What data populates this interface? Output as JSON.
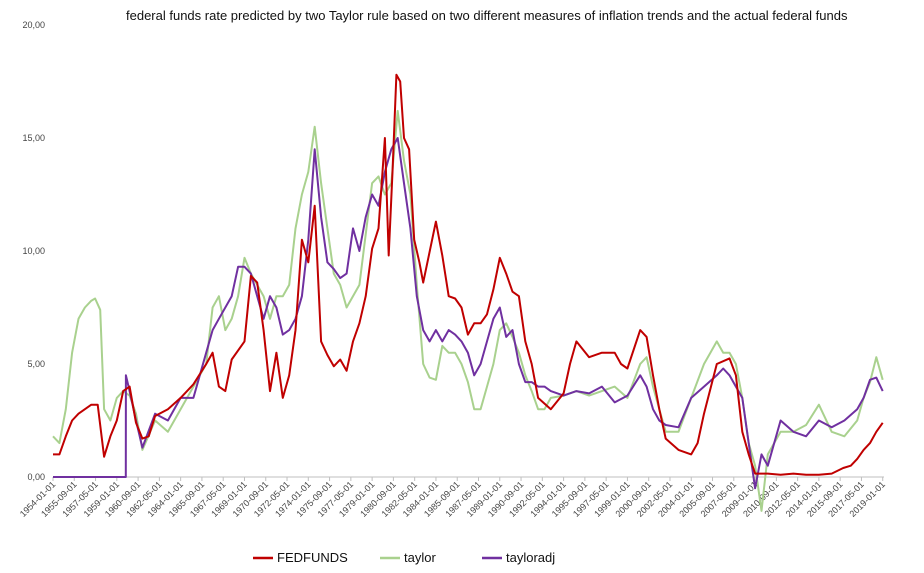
{
  "chart_data": {
    "type": "line",
    "title": "federal funds rate predicted by two Taylor rule  based  on two different measures of inflation trends and the actual federal funds",
    "xlabel": "",
    "ylabel": "",
    "ylim": [
      0,
      20
    ],
    "y_ticks": [
      "0,00",
      "5,00",
      "10,00",
      "15,00",
      "20,00"
    ],
    "x_ticks": [
      "1954-01-01",
      "1955-09-01",
      "1957-05-01",
      "1959-01-01",
      "1960-09-01",
      "1962-05-01",
      "1964-01-01",
      "1965-09-01",
      "1967-05-01",
      "1969-01-01",
      "1970-09-01",
      "1972-05-01",
      "1974-01-01",
      "1975-09-01",
      "1977-05-01",
      "1979-01-01",
      "1980-09-01",
      "1982-05-01",
      "1984-01-01",
      "1985-09-01",
      "1987-05-01",
      "1989-01-01",
      "1990-09-01",
      "1992-05-01",
      "1994-01-01",
      "1995-09-01",
      "1997-05-01",
      "1999-01-01",
      "2000-09-01",
      "2002-05-01",
      "2004-01-01",
      "2005-09-01",
      "2007-05-01",
      "2009-01-01",
      "2010-09-01",
      "2012-05-01",
      "2014-01-01",
      "2015-09-01",
      "2017-05-01",
      "2019-01-01"
    ],
    "x_range": [
      1954.0,
      2019.1
    ],
    "grid": false,
    "legend_position": "bottom",
    "series": [
      {
        "name": "FEDFUNDS",
        "color": "#c00000",
        "x": [
          1954.0,
          1954.5,
          1955.0,
          1955.5,
          1956.0,
          1956.5,
          1957.0,
          1957.5,
          1958.0,
          1958.5,
          1959.0,
          1959.5,
          1960.0,
          1960.5,
          1961.0,
          1961.5,
          1962.0,
          1963.0,
          1964.0,
          1965.0,
          1966.0,
          1966.5,
          1967.0,
          1967.5,
          1968.0,
          1969.0,
          1969.5,
          1970.0,
          1970.5,
          1971.0,
          1971.5,
          1972.0,
          1972.5,
          1973.0,
          1973.5,
          1974.0,
          1974.5,
          1975.0,
          1975.5,
          1976.0,
          1976.5,
          1977.0,
          1977.5,
          1978.0,
          1978.5,
          1979.0,
          1979.5,
          1980.0,
          1980.3,
          1980.6,
          1980.9,
          1981.2,
          1981.5,
          1981.9,
          1982.3,
          1982.7,
          1983.0,
          1984.0,
          1984.5,
          1985.0,
          1985.5,
          1986.0,
          1986.5,
          1987.0,
          1987.5,
          1988.0,
          1988.5,
          1989.0,
          1989.5,
          1990.0,
          1990.5,
          1991.0,
          1991.5,
          1992.0,
          1993.0,
          1994.0,
          1994.5,
          1995.0,
          1996.0,
          1997.0,
          1998.0,
          1998.5,
          1999.0,
          2000.0,
          2000.5,
          2001.0,
          2001.5,
          2002.0,
          2003.0,
          2004.0,
          2004.5,
          2005.0,
          2006.0,
          2007.0,
          2007.5,
          2008.0,
          2008.5,
          2009.0,
          2010.0,
          2011.0,
          2012.0,
          2013.0,
          2014.0,
          2015.0,
          2015.9,
          2016.5,
          2017.0,
          2017.5,
          2018.0,
          2018.5,
          2019.0
        ],
        "values": [
          1.0,
          1.0,
          1.8,
          2.5,
          2.8,
          3.0,
          3.2,
          3.2,
          0.9,
          1.8,
          2.5,
          3.8,
          4.0,
          2.4,
          1.7,
          1.8,
          2.7,
          3.0,
          3.5,
          4.1,
          5.0,
          5.5,
          4.0,
          3.8,
          5.2,
          6.0,
          8.9,
          8.6,
          6.5,
          3.8,
          5.5,
          3.5,
          4.5,
          6.5,
          10.5,
          9.5,
          12.0,
          6.0,
          5.4,
          4.9,
          5.2,
          4.7,
          6.0,
          6.8,
          8.0,
          10.1,
          11.0,
          15.0,
          9.8,
          13.5,
          17.8,
          17.5,
          15.0,
          14.5,
          10.5,
          9.5,
          8.6,
          11.3,
          9.8,
          8.0,
          7.9,
          7.5,
          6.3,
          6.8,
          6.8,
          7.2,
          8.3,
          9.7,
          9.0,
          8.2,
          8.0,
          6.0,
          5.0,
          3.5,
          3.0,
          3.7,
          5.0,
          6.0,
          5.3,
          5.5,
          5.5,
          5.0,
          4.8,
          6.5,
          6.2,
          4.5,
          3.0,
          1.7,
          1.2,
          1.0,
          1.5,
          2.8,
          5.0,
          5.25,
          4.5,
          2.0,
          1.0,
          0.15,
          0.15,
          0.1,
          0.15,
          0.1,
          0.1,
          0.15,
          0.4,
          0.5,
          0.8,
          1.2,
          1.5,
          2.0,
          2.4
        ]
      },
      {
        "name": "taylor",
        "color": "#a9d18e",
        "x": [
          1954.0,
          1954.5,
          1955.0,
          1955.5,
          1956.0,
          1956.5,
          1957.0,
          1957.3,
          1957.7,
          1958.0,
          1958.5,
          1959.0,
          1959.5,
          1960.0,
          1960.5,
          1961.0,
          1962.0,
          1963.0,
          1964.0,
          1965.0,
          1966.0,
          1966.5,
          1967.0,
          1967.5,
          1968.0,
          1968.5,
          1969.0,
          1969.5,
          1970.0,
          1970.5,
          1971.0,
          1971.5,
          1972.0,
          1972.5,
          1973.0,
          1973.5,
          1974.0,
          1974.5,
          1975.0,
          1975.5,
          1976.0,
          1976.5,
          1977.0,
          1978.0,
          1979.0,
          1979.5,
          1980.0,
          1980.5,
          1981.0,
          1981.5,
          1982.0,
          1982.5,
          1983.0,
          1983.5,
          1984.0,
          1984.5,
          1985.0,
          1985.5,
          1986.0,
          1986.5,
          1987.0,
          1987.5,
          1988.0,
          1988.5,
          1989.0,
          1989.5,
          1990.0,
          1990.5,
          1991.0,
          1991.5,
          1992.0,
          1992.5,
          1993.0,
          1994.0,
          1995.0,
          1996.0,
          1997.0,
          1998.0,
          1999.0,
          2000.0,
          2000.5,
          2001.0,
          2001.5,
          2002.0,
          2003.0,
          2004.0,
          2005.0,
          2005.5,
          2006.0,
          2006.5,
          2007.0,
          2007.5,
          2008.0,
          2008.5,
          2009.0,
          2009.5,
          2010.0,
          2011.0,
          2012.0,
          2013.0,
          2014.0,
          2015.0,
          2016.0,
          2017.0,
          2017.5,
          2018.0,
          2018.5,
          2019.0
        ],
        "values": [
          1.8,
          1.5,
          3.0,
          5.5,
          7.0,
          7.5,
          7.8,
          7.9,
          7.4,
          3.0,
          2.5,
          3.5,
          3.8,
          3.6,
          2.8,
          1.2,
          2.5,
          2.0,
          3.0,
          4.0,
          5.0,
          7.5,
          8.0,
          6.5,
          7.0,
          8.0,
          9.7,
          9.0,
          8.5,
          8.0,
          7.0,
          8.0,
          8.0,
          8.5,
          11.0,
          12.5,
          13.5,
          15.5,
          13.0,
          11.0,
          9.0,
          8.5,
          7.5,
          8.5,
          13.0,
          13.3,
          12.5,
          13.0,
          16.2,
          14.0,
          12.5,
          8.5,
          5.0,
          4.4,
          4.3,
          5.8,
          5.5,
          5.5,
          5.0,
          4.2,
          3.0,
          3.0,
          4.0,
          5.0,
          6.5,
          6.8,
          6.2,
          5.5,
          4.5,
          3.8,
          3.0,
          3.0,
          3.5,
          3.6,
          3.8,
          3.6,
          3.8,
          4.0,
          3.5,
          5.0,
          5.3,
          4.0,
          3.0,
          2.0,
          2.0,
          3.5,
          5.0,
          5.5,
          6.0,
          5.5,
          5.5,
          5.0,
          3.5,
          1.5,
          0.5,
          -1.5,
          1.0,
          2.0,
          2.0,
          2.3,
          3.2,
          2.0,
          1.8,
          2.5,
          3.5,
          4.2,
          5.3,
          4.3
        ]
      },
      {
        "name": "tayloradj",
        "color": "#7030a0",
        "x": [
          1954.0,
          1955.0,
          1956.0,
          1957.0,
          1958.0,
          1959.0,
          1959.7,
          1959.71,
          1960.0,
          1960.5,
          1961.0,
          1962.0,
          1963.0,
          1964.0,
          1965.0,
          1966.0,
          1966.5,
          1967.0,
          1968.0,
          1968.5,
          1969.0,
          1969.5,
          1970.0,
          1970.5,
          1971.0,
          1971.5,
          1972.0,
          1972.5,
          1973.0,
          1973.5,
          1974.0,
          1974.5,
          1975.0,
          1975.5,
          1976.0,
          1976.5,
          1977.0,
          1977.5,
          1978.0,
          1978.5,
          1979.0,
          1979.5,
          1980.0,
          1980.5,
          1981.0,
          1981.5,
          1982.0,
          1982.5,
          1983.0,
          1983.5,
          1984.0,
          1984.5,
          1985.0,
          1985.5,
          1986.0,
          1986.5,
          1987.0,
          1987.5,
          1988.0,
          1988.5,
          1989.0,
          1989.5,
          1990.0,
          1990.5,
          1991.0,
          1991.5,
          1992.0,
          1992.5,
          1993.0,
          1994.0,
          1995.0,
          1996.0,
          1997.0,
          1998.0,
          1999.0,
          2000.0,
          2000.5,
          2001.0,
          2001.5,
          2002.0,
          2003.0,
          2004.0,
          2005.0,
          2006.0,
          2006.5,
          2007.0,
          2007.5,
          2008.0,
          2008.5,
          2009.0,
          2009.5,
          2010.0,
          2011.0,
          2012.0,
          2013.0,
          2014.0,
          2015.0,
          2016.0,
          2017.0,
          2017.5,
          2018.0,
          2018.5,
          2019.0
        ],
        "values": [
          0,
          0,
          0,
          0,
          0,
          0,
          0,
          4.5,
          3.8,
          2.5,
          1.3,
          2.8,
          2.5,
          3.5,
          3.5,
          5.5,
          6.5,
          7.0,
          8.0,
          9.3,
          9.3,
          9.0,
          8.0,
          7.0,
          8.0,
          7.5,
          6.3,
          6.5,
          7.0,
          8.0,
          10.5,
          14.5,
          11.5,
          9.5,
          9.2,
          8.8,
          9.0,
          11.0,
          10.0,
          11.5,
          12.5,
          12.0,
          13.5,
          14.5,
          15.0,
          13.0,
          11.0,
          8.0,
          6.5,
          6.0,
          6.5,
          6.0,
          6.5,
          6.3,
          6.0,
          5.5,
          4.5,
          5.0,
          6.0,
          7.0,
          7.5,
          6.2,
          6.5,
          5.0,
          4.2,
          4.2,
          4.0,
          4.0,
          3.8,
          3.6,
          3.8,
          3.7,
          4.0,
          3.3,
          3.6,
          4.5,
          4.0,
          3.0,
          2.5,
          2.3,
          2.2,
          3.5,
          4.0,
          4.5,
          4.8,
          4.5,
          4.0,
          3.5,
          1.5,
          -0.5,
          1.0,
          0.5,
          2.5,
          2.0,
          1.8,
          2.5,
          2.2,
          2.5,
          3.0,
          3.5,
          4.3,
          4.4,
          3.8
        ]
      }
    ]
  }
}
